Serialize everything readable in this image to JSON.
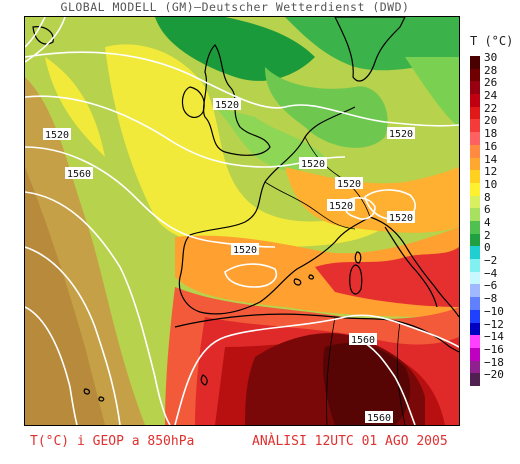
{
  "header": {
    "title": "GLOBAL MODELL (GM)—Deutscher Wetterdienst (DWD)"
  },
  "legend": {
    "title": "T (°C)",
    "stops": [
      {
        "label": "30",
        "color": "#4a0000"
      },
      {
        "label": "28",
        "color": "#700000"
      },
      {
        "label": "26",
        "color": "#960010"
      },
      {
        "label": "24",
        "color": "#c00010"
      },
      {
        "label": "22",
        "color": "#e01818"
      },
      {
        "label": "20",
        "color": "#f53a3a"
      },
      {
        "label": "18",
        "color": "#ff6060"
      },
      {
        "label": "16",
        "color": "#ff8a40"
      },
      {
        "label": "14",
        "color": "#ffa830"
      },
      {
        "label": "12",
        "color": "#ffd020"
      },
      {
        "label": "10",
        "color": "#fff030"
      },
      {
        "label": "8",
        "color": "#d8f060"
      },
      {
        "label": "6",
        "color": "#a8e060"
      },
      {
        "label": "4",
        "color": "#50c050"
      },
      {
        "label": "2",
        "color": "#20a040"
      },
      {
        "label": "0",
        "color": "#20d0d0"
      },
      {
        "label": "−2",
        "color": "#80f0f0"
      },
      {
        "label": "−4",
        "color": "#c8f8ff"
      },
      {
        "label": "−6",
        "color": "#a0b8ff"
      },
      {
        "label": "−8",
        "color": "#6080ff"
      },
      {
        "label": "−10",
        "color": "#2040ff"
      },
      {
        "label": "−12",
        "color": "#0000c0"
      },
      {
        "label": "−14",
        "color": "#ff40ff"
      },
      {
        "label": "−16",
        "color": "#c000c0"
      },
      {
        "label": "−18",
        "color": "#902090"
      },
      {
        "label": "−20",
        "color": "#502050"
      }
    ]
  },
  "map": {
    "contour_labels": [
      "1520",
      "1520",
      "1560",
      "1520",
      "1520",
      "1520",
      "1520",
      "1520",
      "1520",
      "1560",
      "1560"
    ]
  },
  "footer": {
    "left": "T(°C) i GEOP a 850hPa",
    "right": "ANÀLISI 12UTC 01 AGO 2005"
  }
}
